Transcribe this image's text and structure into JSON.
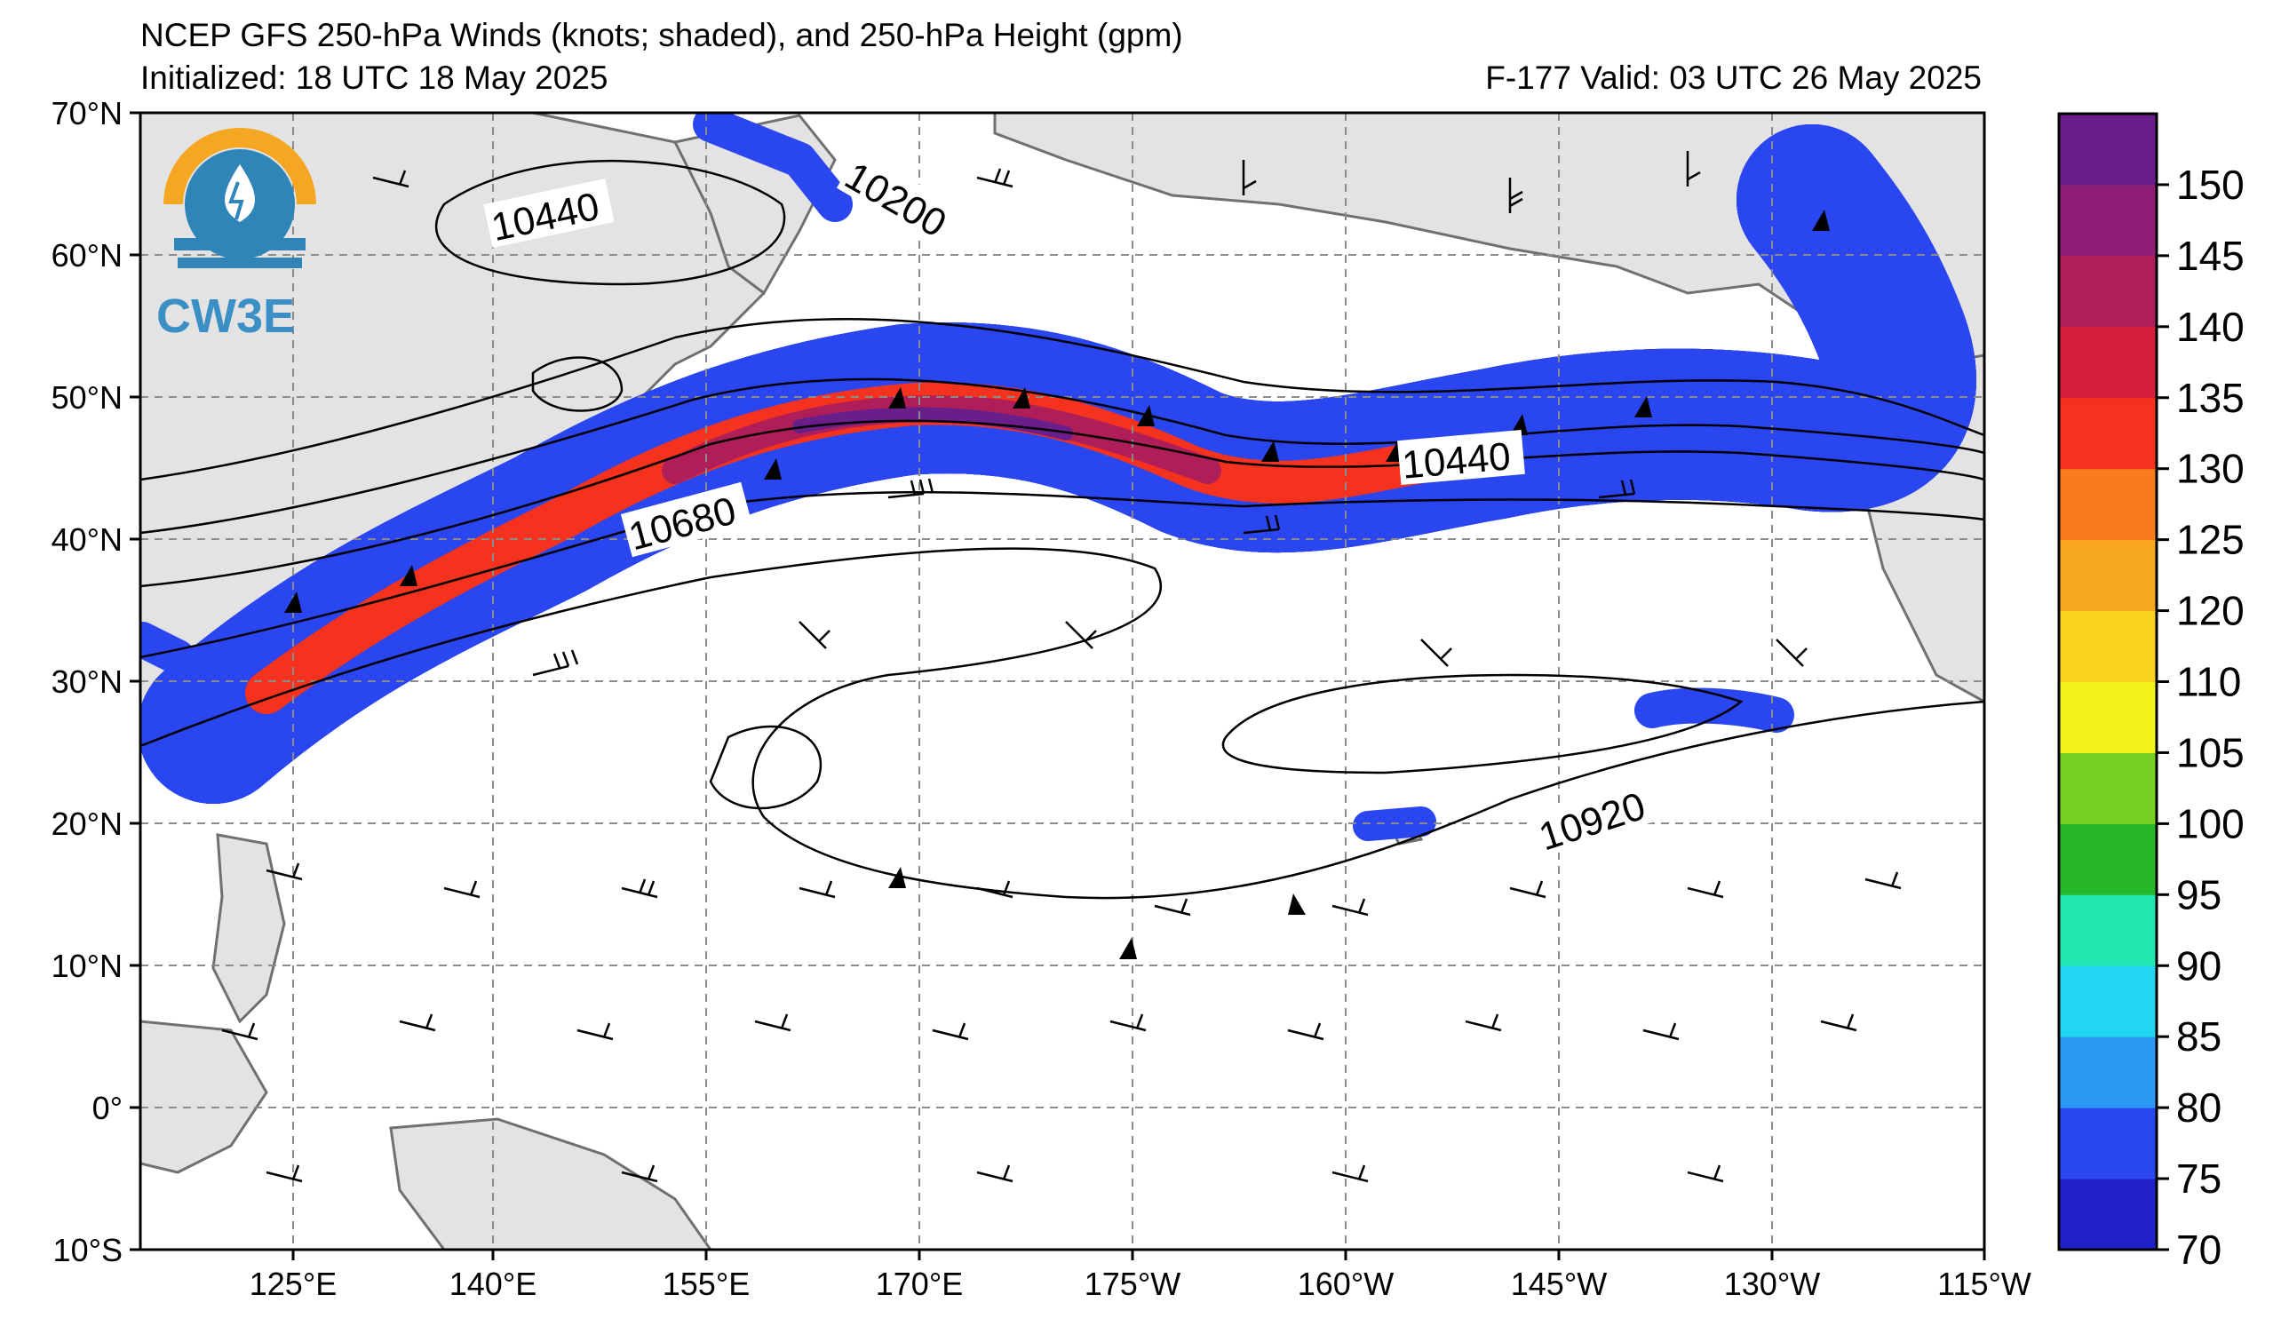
{
  "title_line1": "NCEP GFS 250-hPa Winds (knots; shaded), and 250-hPa Height (gpm)",
  "title_line2": "Initialized: 18 UTC 18 May 2025",
  "title_right": "F-177  Valid: 03 UTC 26 May 2025",
  "logo": {
    "text": "CW3E",
    "icon": "water-drop-sun-logo-icon",
    "colors": [
      "#f5a623",
      "#2f84b8"
    ]
  },
  "map": {
    "lat_range": [
      -10,
      70
    ],
    "lon_range_east": [
      112,
      245
    ],
    "lat_labels": [
      "70°N",
      "60°N",
      "50°N",
      "40°N",
      "30°N",
      "20°N",
      "10°N",
      "0°",
      "10°S"
    ],
    "lon_labels": [
      "125°E",
      "140°E",
      "155°E",
      "170°E",
      "175°W",
      "160°W",
      "145°W",
      "130°W",
      "115°W"
    ],
    "contour_labels": [
      "10440",
      "10200",
      "10680",
      "10440",
      "10920"
    ]
  },
  "colorbar": {
    "ticks": [
      "70",
      "75",
      "80",
      "85",
      "90",
      "95",
      "100",
      "105",
      "110",
      "120",
      "125",
      "130",
      "135",
      "140",
      "145",
      "150"
    ],
    "colors": [
      "#2222cc",
      "#2a46f0",
      "#2a9af5",
      "#22d6f2",
      "#22e6b0",
      "#26b829",
      "#76d021",
      "#f4f41c",
      "#f8d21e",
      "#f8a81e",
      "#f87c1e",
      "#f4321e",
      "#d61e3c",
      "#b01e5a",
      "#8e1e76",
      "#6a1e8a"
    ]
  }
}
